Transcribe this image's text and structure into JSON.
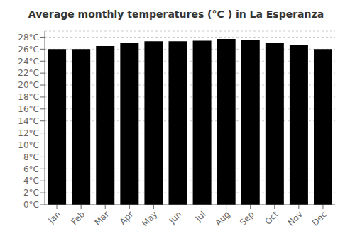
{
  "chart_data": {
    "type": "bar",
    "title": "Average monthly temperatures (°C ) in La Esperanza",
    "categories": [
      "Jan",
      "Feb",
      "Mar",
      "Apr",
      "May",
      "Jun",
      "Jul",
      "Aug",
      "Sep",
      "Oct",
      "Nov",
      "Dec"
    ],
    "values": [
      26.0,
      26.0,
      26.5,
      27.0,
      27.3,
      27.3,
      27.4,
      27.7,
      27.5,
      27.0,
      26.7,
      26.0
    ],
    "ylim": [
      0,
      29
    ],
    "yticks": [
      {
        "value": 0,
        "label": "0°C"
      },
      {
        "value": 2,
        "label": "2°C"
      },
      {
        "value": 4,
        "label": "4°C"
      },
      {
        "value": 6,
        "label": "6°C"
      },
      {
        "value": 8,
        "label": "8°C"
      },
      {
        "value": 10,
        "label": "10°C"
      },
      {
        "value": 12,
        "label": "12°C"
      },
      {
        "value": 14,
        "label": "14°C"
      },
      {
        "value": 16,
        "label": "16°C"
      },
      {
        "value": 18,
        "label": "18°C"
      },
      {
        "value": 20,
        "label": "20°C"
      },
      {
        "value": 22,
        "label": "22°C"
      },
      {
        "value": 24,
        "label": "24°C"
      },
      {
        "value": 26,
        "label": "26°C"
      },
      {
        "value": 28,
        "label": "28°C"
      }
    ],
    "grid": true
  }
}
